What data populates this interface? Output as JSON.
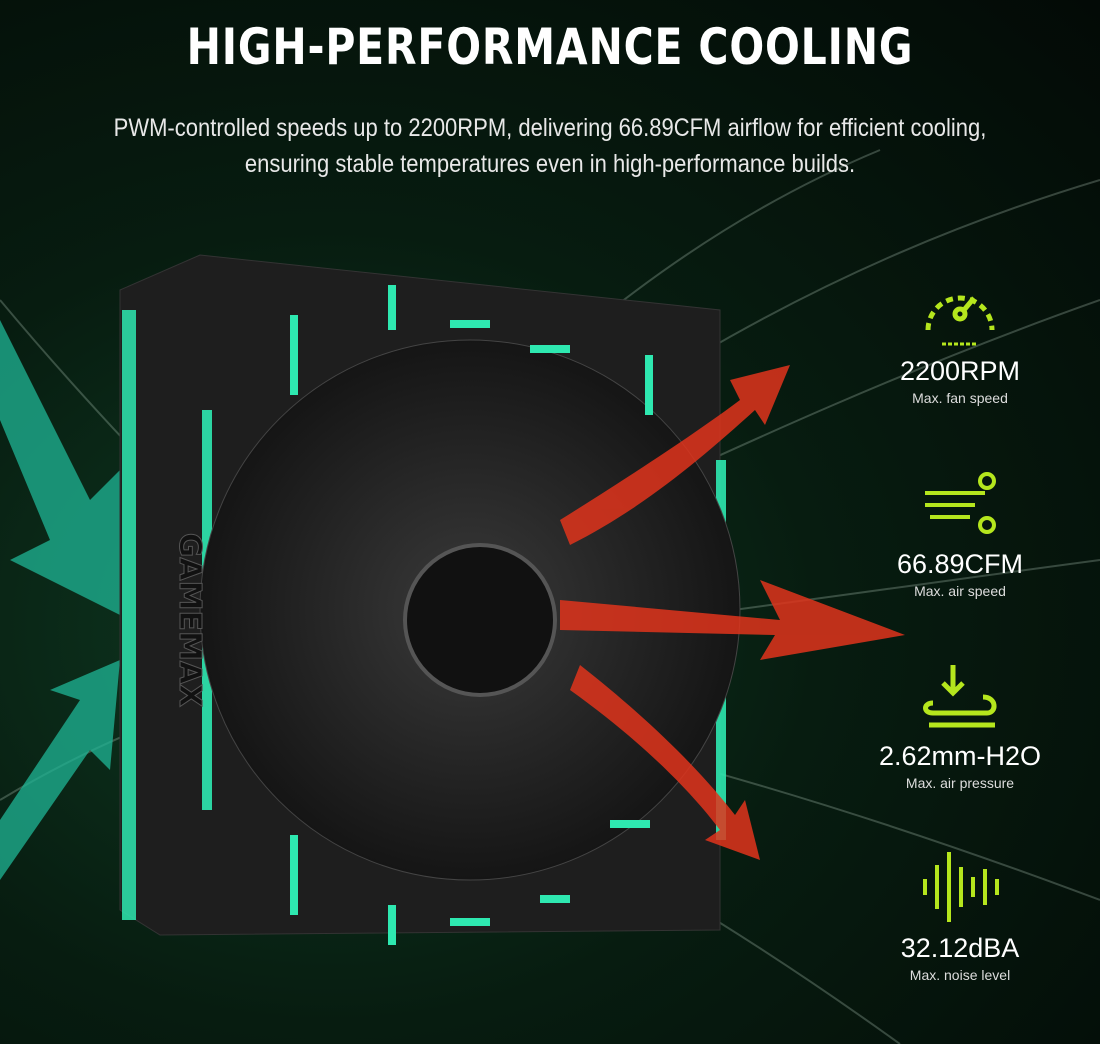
{
  "header": {
    "title": "HIGH-PERFORMANCE COOLING",
    "subtitle_lines": [
      "PWM-controlled speeds up to 2200RPM, delivering 66.89CFM airflow for efficient cooling,",
      "ensuring stable temperatures even in high-performance builds."
    ]
  },
  "product": {
    "brand": "GAMEMAX"
  },
  "colors": {
    "accent": "#b5e61d",
    "rgb_led": "#2ee8b0",
    "airflow_arrow": "#e0341c",
    "background": "#071c10"
  },
  "stats": [
    {
      "icon": "speedometer-icon",
      "value": "2200RPM",
      "label": "Max. fan speed"
    },
    {
      "icon": "wind-icon",
      "value": "66.89CFM",
      "label": "Max. air speed"
    },
    {
      "icon": "pressure-icon",
      "value": "2.62mm-H2O",
      "label": "Max. air pressure"
    },
    {
      "icon": "sound-wave-icon",
      "value": "32.12dBA",
      "label": "Max. noise level"
    }
  ]
}
